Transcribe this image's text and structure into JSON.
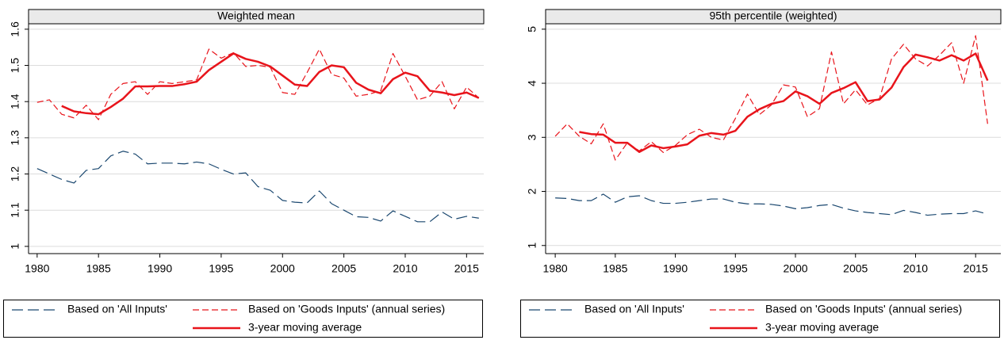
{
  "chart_data": [
    {
      "type": "line",
      "title": "Weighted mean",
      "x": [
        1980,
        1981,
        1982,
        1983,
        1984,
        1985,
        1986,
        1987,
        1988,
        1989,
        1990,
        1991,
        1992,
        1993,
        1994,
        1995,
        1996,
        1997,
        1998,
        1999,
        2000,
        2001,
        2002,
        2003,
        2004,
        2005,
        2006,
        2007,
        2008,
        2009,
        2010,
        2011,
        2012,
        2013,
        2014,
        2015,
        2016
      ],
      "xlim": [
        1979.3,
        2016.4
      ],
      "xticks": [
        1980,
        1985,
        1990,
        1995,
        2000,
        2005,
        2010,
        2015
      ],
      "ylim": [
        0.98,
        1.615
      ],
      "yticks": [
        1,
        1.1,
        1.2,
        1.3,
        1.4,
        1.5,
        1.6
      ],
      "grid": true,
      "series": [
        {
          "name": "Based on 'All Inputs'",
          "color": "#1a476f",
          "style": "longdash",
          "values": [
            1.215,
            1.2,
            1.185,
            1.175,
            1.21,
            1.215,
            1.25,
            1.263,
            1.255,
            1.228,
            1.23,
            1.23,
            1.228,
            1.233,
            1.228,
            1.213,
            1.2,
            1.203,
            1.165,
            1.155,
            1.127,
            1.122,
            1.12,
            1.153,
            1.118,
            1.1,
            1.082,
            1.08,
            1.07,
            1.098,
            1.083,
            1.068,
            1.068,
            1.095,
            1.075,
            1.083,
            1.078
          ]
        },
        {
          "name": "Based on 'Goods Inputs' (annual series)",
          "color": "#e8141b",
          "style": "dashed",
          "values": [
            1.398,
            1.405,
            1.365,
            1.355,
            1.39,
            1.35,
            1.42,
            1.45,
            1.455,
            1.42,
            1.455,
            1.45,
            1.455,
            1.46,
            1.545,
            1.52,
            1.535,
            1.497,
            1.5,
            1.495,
            1.425,
            1.42,
            1.48,
            1.545,
            1.475,
            1.465,
            1.415,
            1.42,
            1.43,
            1.533,
            1.47,
            1.405,
            1.415,
            1.455,
            1.38,
            1.44,
            1.41
          ]
        },
        {
          "name": "3-year moving average",
          "color": "#e8141b",
          "style": "solid",
          "values": [
            null,
            null,
            1.388,
            1.373,
            1.368,
            1.365,
            1.385,
            1.408,
            1.442,
            1.442,
            1.443,
            1.443,
            1.448,
            1.455,
            1.487,
            1.51,
            1.533,
            1.518,
            1.51,
            1.497,
            1.472,
            1.447,
            1.443,
            1.482,
            1.5,
            1.495,
            1.452,
            1.433,
            1.423,
            1.462,
            1.48,
            1.47,
            1.43,
            1.425,
            1.418,
            1.425,
            1.41
          ]
        }
      ]
    },
    {
      "type": "line",
      "title": "95th percentile (weighted)",
      "x": [
        1980,
        1981,
        1982,
        1983,
        1984,
        1985,
        1986,
        1987,
        1988,
        1989,
        1990,
        1991,
        1992,
        1993,
        1994,
        1995,
        1996,
        1997,
        1998,
        1999,
        2000,
        2001,
        2002,
        2003,
        2004,
        2005,
        2006,
        2007,
        2008,
        2009,
        2010,
        2011,
        2012,
        2013,
        2014,
        2015,
        2016
      ],
      "xlim": [
        1979.2,
        2017.1
      ],
      "xticks": [
        1980,
        1985,
        1990,
        1995,
        2000,
        2005,
        2010,
        2015
      ],
      "ylim": [
        0.85,
        5.1
      ],
      "yticks": [
        1,
        2,
        3,
        4,
        5
      ],
      "grid": true,
      "series": [
        {
          "name": "Based on 'All Inputs'",
          "color": "#1a476f",
          "style": "longdash",
          "values": [
            1.88,
            1.87,
            1.83,
            1.83,
            1.95,
            1.8,
            1.9,
            1.92,
            1.83,
            1.78,
            1.78,
            1.8,
            1.83,
            1.86,
            1.86,
            1.8,
            1.77,
            1.77,
            1.76,
            1.73,
            1.68,
            1.7,
            1.74,
            1.76,
            1.69,
            1.64,
            1.61,
            1.59,
            1.57,
            1.65,
            1.61,
            1.56,
            1.58,
            1.59,
            1.59,
            1.64,
            1.58
          ]
        },
        {
          "name": "Based on 'Goods Inputs' (annual series)",
          "color": "#e8141b",
          "style": "dashed",
          "values": [
            3.02,
            3.25,
            3.02,
            2.88,
            3.25,
            2.58,
            2.9,
            2.75,
            2.92,
            2.72,
            2.85,
            3.05,
            3.15,
            3.0,
            2.95,
            3.35,
            3.8,
            3.42,
            3.6,
            3.97,
            3.93,
            3.38,
            3.53,
            4.58,
            3.62,
            3.88,
            3.6,
            3.72,
            4.45,
            4.72,
            4.45,
            4.32,
            4.52,
            4.75,
            4.0,
            4.88,
            3.25
          ]
        },
        {
          "name": "3-year moving average",
          "color": "#e8141b",
          "style": "solid",
          "values": [
            null,
            null,
            3.1,
            3.06,
            3.05,
            2.9,
            2.9,
            2.73,
            2.85,
            2.8,
            2.83,
            2.87,
            3.03,
            3.08,
            3.05,
            3.12,
            3.38,
            3.52,
            3.62,
            3.67,
            3.85,
            3.76,
            3.62,
            3.82,
            3.91,
            4.02,
            3.67,
            3.7,
            3.92,
            4.3,
            4.53,
            4.48,
            4.42,
            4.52,
            4.42,
            4.55,
            4.05
          ]
        }
      ]
    }
  ]
}
